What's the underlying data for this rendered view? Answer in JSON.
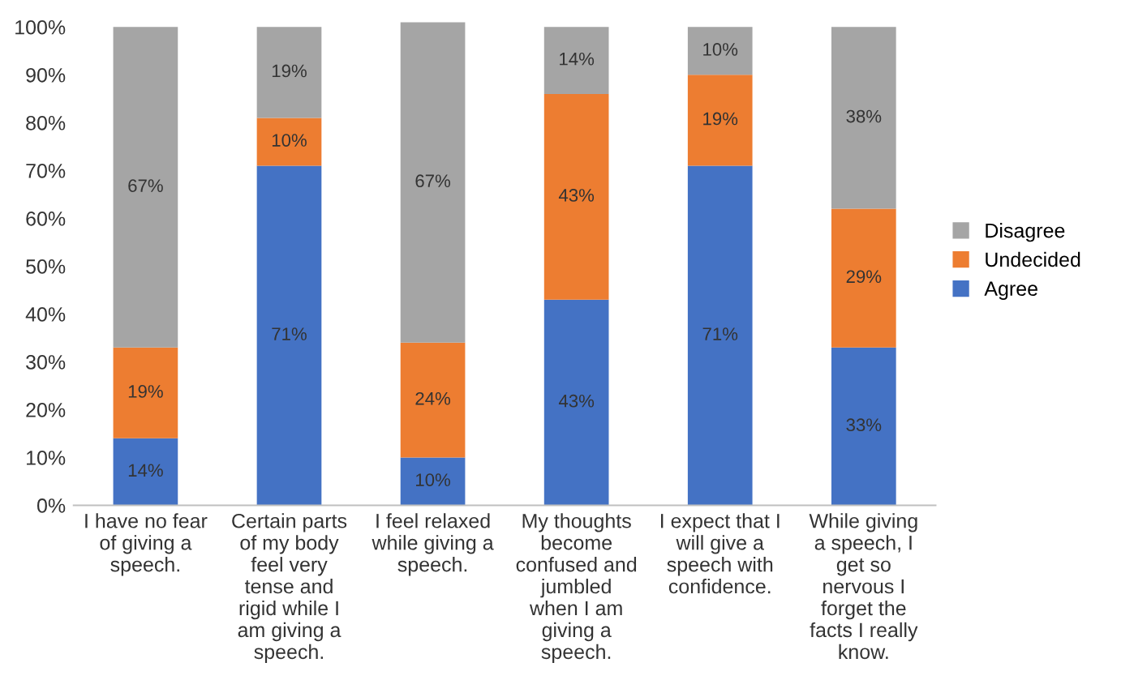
{
  "chart_data": {
    "type": "bar",
    "stacked": true,
    "legend": "right",
    "categories": [
      "I have no fear\nof giving a\nspeech.",
      "Certain parts\nof my body\nfeel very\ntense and\nrigid while I\nam giving a\nspeech.",
      "I feel relaxed\nwhile giving a\nspeech.",
      "My thoughts\nbecome\nconfused and\njumbled\nwhen I am\ngiving a\nspeech.",
      "I expect that I\nwill give a\nspeech with\nconfidence.",
      "While giving\na speech, I\nget so\nnervous I\nforget the\nfacts I really\nknow."
    ],
    "series": [
      {
        "name": "Agree",
        "color": "#4472c4",
        "values": [
          14,
          71,
          10,
          43,
          71,
          33
        ],
        "value_labels": [
          "14%",
          "71%",
          "10%",
          "43%",
          "71%",
          "33%"
        ]
      },
      {
        "name": "Undecided",
        "color": "#ed7d31",
        "values": [
          19,
          10,
          24,
          43,
          19,
          29
        ],
        "value_labels": [
          "19%",
          "10%",
          "24%",
          "43%",
          "19%",
          "29%"
        ]
      },
      {
        "name": "Disagree",
        "color": "#a5a5a5",
        "values": [
          67,
          19,
          67,
          14,
          10,
          38
        ],
        "value_labels": [
          "67%",
          "19%",
          "67%",
          "14%",
          "10%",
          "38%"
        ]
      }
    ],
    "ylim": [
      0,
      102
    ],
    "yticks": [
      {
        "value": 0,
        "label": "0%"
      },
      {
        "value": 10,
        "label": "10%"
      },
      {
        "value": 20,
        "label": "20%"
      },
      {
        "value": 30,
        "label": "30%"
      },
      {
        "value": 40,
        "label": "40%"
      },
      {
        "value": 50,
        "label": "50%"
      },
      {
        "value": 60,
        "label": "60%"
      },
      {
        "value": 70,
        "label": "70%"
      },
      {
        "value": 80,
        "label": "80%"
      },
      {
        "value": 90,
        "label": "90%"
      },
      {
        "value": 100,
        "label": "100%"
      }
    ]
  }
}
